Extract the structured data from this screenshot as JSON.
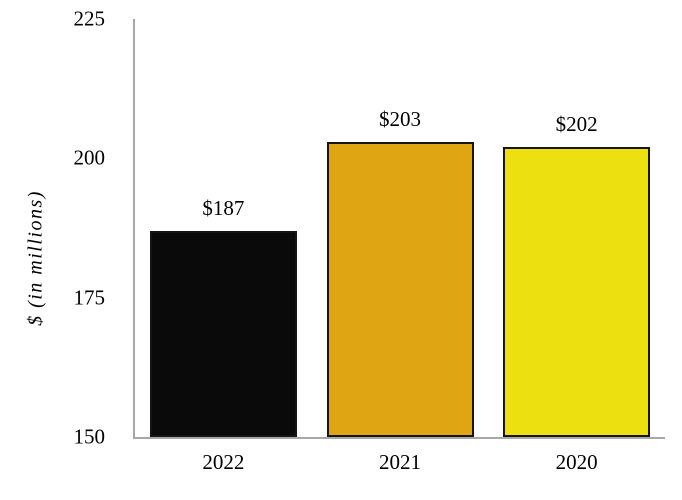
{
  "chart_data": {
    "type": "bar",
    "title": "",
    "categories": [
      "2022",
      "2021",
      "2020"
    ],
    "values": [
      187,
      203,
      202
    ],
    "value_labels": [
      "$187",
      "$203",
      "$202"
    ],
    "bar_colors": [
      "#0a0a0a",
      "#e0a512",
      "#ede011"
    ],
    "bar_border_color": "#141414",
    "xlabel": "",
    "ylabel": "$ (in millions)",
    "ylim": [
      150,
      225
    ],
    "yticks": [
      150,
      175,
      200,
      225
    ],
    "axis_color": "#a8a8a8",
    "grid": false,
    "legend_position": "none"
  }
}
